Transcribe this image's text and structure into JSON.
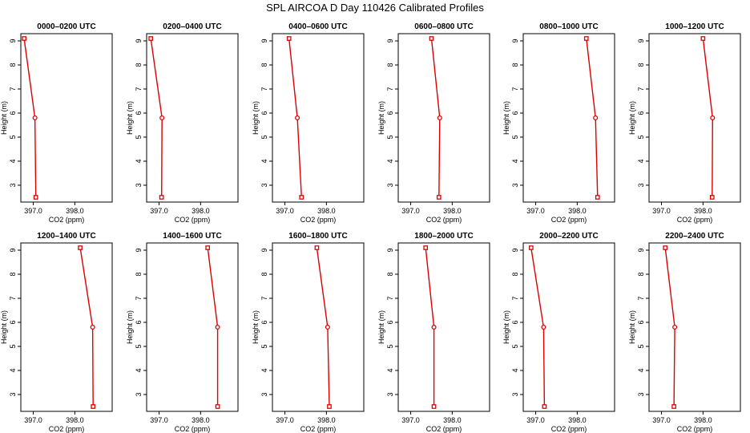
{
  "title": "SPL AIRCOA D  Day 110426  Calibrated Profiles",
  "colors": {
    "series": "#dd0000",
    "axis": "#000000"
  },
  "chart_data": [
    {
      "type": "line",
      "title": "0000–0200 UTC",
      "xlabel": "CO2 (ppm)",
      "ylabel": "Height (m)",
      "xlim": [
        396.7,
        398.9
      ],
      "ylim": [
        2.3,
        9.3
      ],
      "xticks": [
        397.0,
        398.0
      ],
      "yticks": [
        3,
        4,
        5,
        6,
        7,
        8,
        9
      ],
      "x": [
        396.78,
        397.04,
        397.06
      ],
      "y": [
        9.1,
        5.8,
        2.5
      ]
    },
    {
      "type": "line",
      "title": "0200–0400 UTC",
      "xlabel": "CO2 (ppm)",
      "ylabel": "Height (m)",
      "xlim": [
        396.7,
        398.9
      ],
      "ylim": [
        2.3,
        9.3
      ],
      "xticks": [
        397.0,
        398.0
      ],
      "yticks": [
        3,
        4,
        5,
        6,
        7,
        8,
        9
      ],
      "x": [
        396.8,
        397.07,
        397.06
      ],
      "y": [
        9.1,
        5.8,
        2.5
      ]
    },
    {
      "type": "line",
      "title": "0400–0600 UTC",
      "xlabel": "CO2 (ppm)",
      "ylabel": "Height (m)",
      "xlim": [
        396.7,
        398.9
      ],
      "ylim": [
        2.3,
        9.3
      ],
      "xticks": [
        397.0,
        398.0
      ],
      "yticks": [
        3,
        4,
        5,
        6,
        7,
        8,
        9
      ],
      "x": [
        397.1,
        397.3,
        397.4
      ],
      "y": [
        9.1,
        5.8,
        2.5
      ]
    },
    {
      "type": "line",
      "title": "0600–0800 UTC",
      "xlabel": "CO2 (ppm)",
      "ylabel": "Height (m)",
      "xlim": [
        396.7,
        398.9
      ],
      "ylim": [
        2.3,
        9.3
      ],
      "xticks": [
        397.0,
        398.0
      ],
      "yticks": [
        3,
        4,
        5,
        6,
        7,
        8,
        9
      ],
      "x": [
        397.5,
        397.7,
        397.68
      ],
      "y": [
        9.1,
        5.8,
        2.5
      ]
    },
    {
      "type": "line",
      "title": "0800–1000 UTC",
      "xlabel": "CO2 (ppm)",
      "ylabel": "Height (m)",
      "xlim": [
        396.7,
        398.9
      ],
      "ylim": [
        2.3,
        9.3
      ],
      "xticks": [
        397.0,
        398.0
      ],
      "yticks": [
        3,
        4,
        5,
        6,
        7,
        8,
        9
      ],
      "x": [
        398.22,
        398.44,
        398.49
      ],
      "y": [
        9.1,
        5.8,
        2.5
      ]
    },
    {
      "type": "line",
      "title": "1000–1200 UTC",
      "xlabel": "CO2 (ppm)",
      "ylabel": "Height (m)",
      "xlim": [
        396.7,
        398.9
      ],
      "ylim": [
        2.3,
        9.3
      ],
      "xticks": [
        397.0,
        398.0
      ],
      "yticks": [
        3,
        4,
        5,
        6,
        7,
        8,
        9
      ],
      "x": [
        398.0,
        398.23,
        398.22
      ],
      "y": [
        9.1,
        5.8,
        2.5
      ]
    },
    {
      "type": "line",
      "title": "1200–1400 UTC",
      "xlabel": "CO2 (ppm)",
      "ylabel": "Height (m)",
      "xlim": [
        396.7,
        398.9
      ],
      "ylim": [
        2.3,
        9.3
      ],
      "xticks": [
        397.0,
        398.0
      ],
      "yticks": [
        3,
        4,
        5,
        6,
        7,
        8,
        9
      ],
      "x": [
        398.13,
        398.43,
        398.44
      ],
      "y": [
        9.1,
        5.8,
        2.5
      ]
    },
    {
      "type": "line",
      "title": "1400–1600 UTC",
      "xlabel": "CO2 (ppm)",
      "ylabel": "Height (m)",
      "xlim": [
        396.7,
        398.9
      ],
      "ylim": [
        2.3,
        9.3
      ],
      "xticks": [
        397.0,
        398.0
      ],
      "yticks": [
        3,
        4,
        5,
        6,
        7,
        8,
        9
      ],
      "x": [
        398.17,
        398.41,
        398.41
      ],
      "y": [
        9.1,
        5.8,
        2.5
      ]
    },
    {
      "type": "line",
      "title": "1600–1800 UTC",
      "xlabel": "CO2 (ppm)",
      "ylabel": "Height (m)",
      "xlim": [
        396.7,
        398.9
      ],
      "ylim": [
        2.3,
        9.3
      ],
      "xticks": [
        397.0,
        398.0
      ],
      "yticks": [
        3,
        4,
        5,
        6,
        7,
        8,
        9
      ],
      "x": [
        397.77,
        398.03,
        398.07
      ],
      "y": [
        9.1,
        5.8,
        2.5
      ]
    },
    {
      "type": "line",
      "title": "1800–2000 UTC",
      "xlabel": "CO2 (ppm)",
      "ylabel": "Height (m)",
      "xlim": [
        396.7,
        398.9
      ],
      "ylim": [
        2.3,
        9.3
      ],
      "xticks": [
        397.0,
        398.0
      ],
      "yticks": [
        3,
        4,
        5,
        6,
        7,
        8,
        9
      ],
      "x": [
        397.36,
        397.56,
        397.56
      ],
      "y": [
        9.1,
        5.8,
        2.5
      ]
    },
    {
      "type": "line",
      "title": "2000–2200 UTC",
      "xlabel": "CO2 (ppm)",
      "ylabel": "Height (m)",
      "xlim": [
        396.7,
        398.9
      ],
      "ylim": [
        2.3,
        9.3
      ],
      "xticks": [
        397.0,
        398.0
      ],
      "yticks": [
        3,
        4,
        5,
        6,
        7,
        8,
        9
      ],
      "x": [
        396.89,
        397.19,
        397.21
      ],
      "y": [
        9.1,
        5.8,
        2.5
      ]
    },
    {
      "type": "line",
      "title": "2200–2400 UTC",
      "xlabel": "CO2 (ppm)",
      "ylabel": "Height (m)",
      "xlim": [
        396.7,
        398.9
      ],
      "ylim": [
        2.3,
        9.3
      ],
      "xticks": [
        397.0,
        398.0
      ],
      "yticks": [
        3,
        4,
        5,
        6,
        7,
        8,
        9
      ],
      "x": [
        397.09,
        397.32,
        397.3
      ],
      "y": [
        9.1,
        5.8,
        2.5
      ]
    }
  ]
}
